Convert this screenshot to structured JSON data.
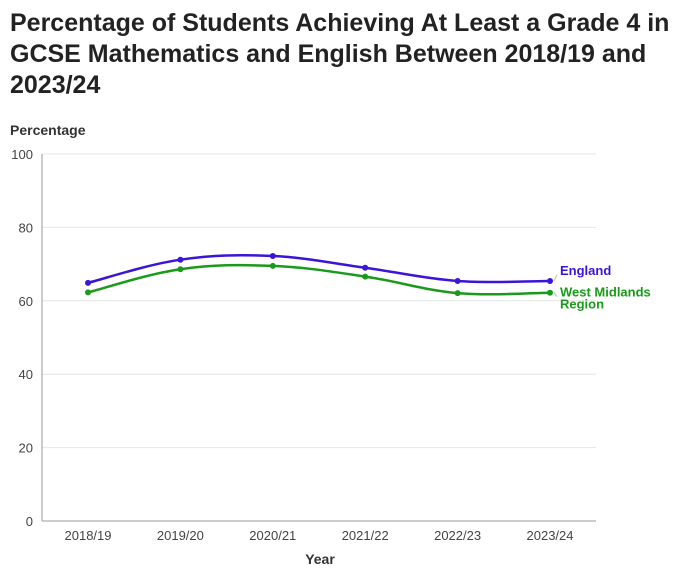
{
  "chart_data": {
    "type": "line",
    "title": "Percentage of Students Achieving At Least a Grade 4 in GCSE Mathematics and English Between 2018/19 and 2023/24",
    "ylabel": "Percentage",
    "xlabel": "Year",
    "categories": [
      "2018/19",
      "2019/20",
      "2020/21",
      "2021/22",
      "2022/23",
      "2023/24"
    ],
    "ylim": [
      0,
      100
    ],
    "yticks": [
      "0",
      "20",
      "40",
      "60",
      "80",
      "100"
    ],
    "grid": true,
    "legend": "end-of-line labels",
    "series": [
      {
        "name": "England",
        "color": "#3b14d9",
        "values": [
          64.9,
          71.2,
          72.2,
          69.0,
          65.4,
          65.4
        ]
      },
      {
        "name": "West Midlands Region",
        "color": "#1a9a1a",
        "values": [
          62.3,
          68.6,
          69.5,
          66.6,
          62.1,
          62.2
        ]
      }
    ]
  }
}
